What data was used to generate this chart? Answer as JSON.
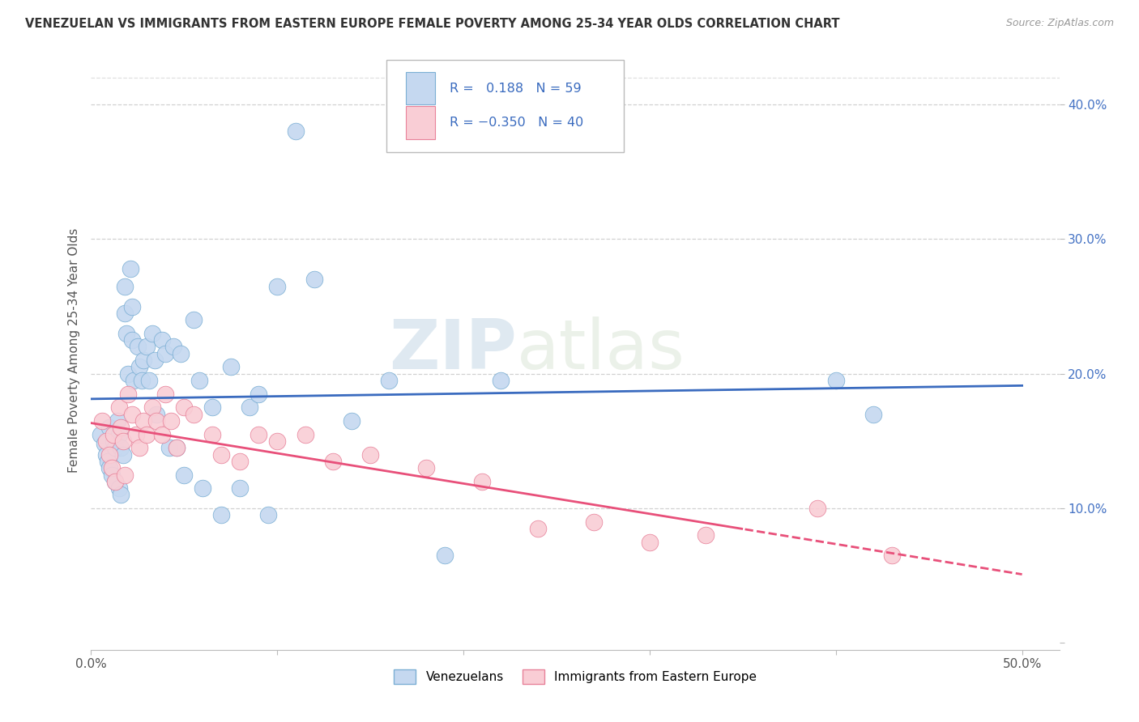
{
  "title": "VENEZUELAN VS IMMIGRANTS FROM EASTERN EUROPE FEMALE POVERTY AMONG 25-34 YEAR OLDS CORRELATION CHART",
  "source": "Source: ZipAtlas.com",
  "ylabel": "Female Poverty Among 25-34 Year Olds",
  "xlim": [
    0.0,
    0.52
  ],
  "ylim": [
    -0.005,
    0.44
  ],
  "xticks": [
    0.0,
    0.1,
    0.2,
    0.3,
    0.4,
    0.5
  ],
  "xticklabels": [
    "0.0%",
    "",
    "",
    "",
    "",
    "50.0%"
  ],
  "yticks": [
    0.0,
    0.1,
    0.2,
    0.3,
    0.4
  ],
  "yticklabels": [
    "",
    "10.0%",
    "20.0%",
    "30.0%",
    "40.0%"
  ],
  "grid_color": "#cccccc",
  "background_color": "#ffffff",
  "watermark_zip": "ZIP",
  "watermark_atlas": "atlas",
  "series": [
    {
      "name": "Venezuelans",
      "color": "#c5d8f0",
      "edge_color": "#7bafd4",
      "R": 0.188,
      "N": 59,
      "line_color": "#3a6bbf",
      "line_style": "solid",
      "x": [
        0.005,
        0.007,
        0.008,
        0.009,
        0.01,
        0.01,
        0.011,
        0.012,
        0.013,
        0.013,
        0.014,
        0.015,
        0.015,
        0.016,
        0.016,
        0.017,
        0.018,
        0.018,
        0.019,
        0.02,
        0.021,
        0.022,
        0.022,
        0.023,
        0.025,
        0.026,
        0.027,
        0.028,
        0.03,
        0.031,
        0.033,
        0.034,
        0.035,
        0.038,
        0.04,
        0.042,
        0.044,
        0.046,
        0.048,
        0.05,
        0.055,
        0.058,
        0.06,
        0.065,
        0.07,
        0.075,
        0.08,
        0.085,
        0.09,
        0.095,
        0.1,
        0.11,
        0.12,
        0.14,
        0.16,
        0.19,
        0.22,
        0.4,
        0.42
      ],
      "y": [
        0.155,
        0.148,
        0.14,
        0.135,
        0.16,
        0.13,
        0.125,
        0.15,
        0.145,
        0.12,
        0.165,
        0.155,
        0.115,
        0.145,
        0.11,
        0.14,
        0.265,
        0.245,
        0.23,
        0.2,
        0.278,
        0.25,
        0.225,
        0.195,
        0.22,
        0.205,
        0.195,
        0.21,
        0.22,
        0.195,
        0.23,
        0.21,
        0.17,
        0.225,
        0.215,
        0.145,
        0.22,
        0.145,
        0.215,
        0.125,
        0.24,
        0.195,
        0.115,
        0.175,
        0.095,
        0.205,
        0.115,
        0.175,
        0.185,
        0.095,
        0.265,
        0.38,
        0.27,
        0.165,
        0.195,
        0.065,
        0.195,
        0.195,
        0.17
      ]
    },
    {
      "name": "Immigrants from Eastern Europe",
      "color": "#f9cdd5",
      "edge_color": "#e8829a",
      "R": -0.35,
      "N": 40,
      "line_color": "#e8507a",
      "line_style": "solid",
      "line_solid_end": 0.35,
      "line_dashed_start": 0.35,
      "x": [
        0.006,
        0.008,
        0.01,
        0.011,
        0.012,
        0.013,
        0.015,
        0.016,
        0.017,
        0.018,
        0.02,
        0.022,
        0.024,
        0.026,
        0.028,
        0.03,
        0.033,
        0.035,
        0.038,
        0.04,
        0.043,
        0.046,
        0.05,
        0.055,
        0.065,
        0.07,
        0.08,
        0.09,
        0.1,
        0.115,
        0.13,
        0.15,
        0.18,
        0.21,
        0.24,
        0.27,
        0.3,
        0.33,
        0.39,
        0.43
      ],
      "y": [
        0.165,
        0.15,
        0.14,
        0.13,
        0.155,
        0.12,
        0.175,
        0.16,
        0.15,
        0.125,
        0.185,
        0.17,
        0.155,
        0.145,
        0.165,
        0.155,
        0.175,
        0.165,
        0.155,
        0.185,
        0.165,
        0.145,
        0.175,
        0.17,
        0.155,
        0.14,
        0.135,
        0.155,
        0.15,
        0.155,
        0.135,
        0.14,
        0.13,
        0.12,
        0.085,
        0.09,
        0.075,
        0.08,
        0.1,
        0.065
      ]
    }
  ]
}
